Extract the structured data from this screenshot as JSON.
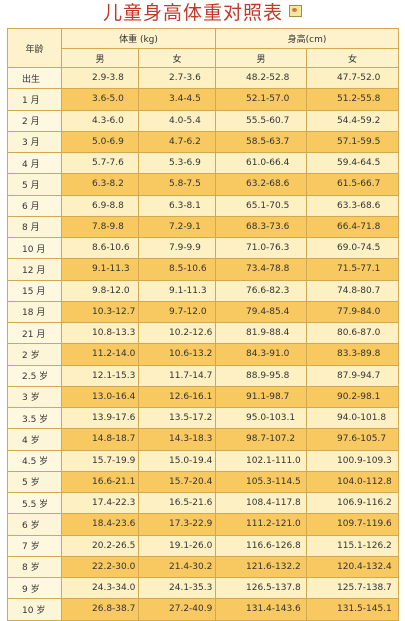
{
  "title": "儿童身高体重对照表",
  "header": {
    "age": "年龄",
    "weight": "体重 (kg)",
    "height": "身高(cm)",
    "male": "男",
    "female": "女"
  },
  "rows": [
    {
      "age": "出生",
      "wm": "2.9-3.8",
      "wf": "2.7-3.6",
      "hm": "48.2-52.8",
      "hf": "47.7-52.0"
    },
    {
      "age": "1 月",
      "wm": "3.6-5.0",
      "wf": "3.4-4.5",
      "hm": "52.1-57.0",
      "hf": "51.2-55.8"
    },
    {
      "age": "2 月",
      "wm": "4.3-6.0",
      "wf": "4.0-5.4",
      "hm": "55.5-60.7",
      "hf": "54.4-59.2"
    },
    {
      "age": "3 月",
      "wm": "5.0-6.9",
      "wf": "4.7-6.2",
      "hm": "58.5-63.7",
      "hf": "57.1-59.5"
    },
    {
      "age": "4 月",
      "wm": "5.7-7.6",
      "wf": "5.3-6.9",
      "hm": "61.0-66.4",
      "hf": "59.4-64.5"
    },
    {
      "age": "5 月",
      "wm": "6.3-8.2",
      "wf": "5.8-7.5",
      "hm": "63.2-68.6",
      "hf": "61.5-66.7"
    },
    {
      "age": "6 月",
      "wm": "6.9-8.8",
      "wf": "6.3-8.1",
      "hm": "65.1-70.5",
      "hf": "63.3-68.6"
    },
    {
      "age": "8 月",
      "wm": "7.8-9.8",
      "wf": "7.2-9.1",
      "hm": "68.3-73.6",
      "hf": "66.4-71.8"
    },
    {
      "age": "10 月",
      "wm": "8.6-10.6",
      "wf": "7.9-9.9",
      "hm": "71.0-76.3",
      "hf": "69.0-74.5"
    },
    {
      "age": "12 月",
      "wm": "9.1-11.3",
      "wf": "8.5-10.6",
      "hm": "73.4-78.8",
      "hf": "71.5-77.1"
    },
    {
      "age": "15 月",
      "wm": "9.8-12.0",
      "wf": "9.1-11.3",
      "hm": "76.6-82.3",
      "hf": "74.8-80.7"
    },
    {
      "age": "18 月",
      "wm": "10.3-12.7",
      "wf": "9.7-12.0",
      "hm": "79.4-85.4",
      "hf": "77.9-84.0"
    },
    {
      "age": "21 月",
      "wm": "10.8-13.3",
      "wf": "10.2-12.6",
      "hm": "81.9-88.4",
      "hf": "80.6-87.0"
    },
    {
      "age": "2 岁",
      "wm": "11.2-14.0",
      "wf": "10.6-13.2",
      "hm": "84.3-91.0",
      "hf": "83.3-89.8"
    },
    {
      "age": "2.5 岁",
      "wm": "12.1-15.3",
      "wf": "11.7-14.7",
      "hm": "88.9-95.8",
      "hf": "87.9-94.7"
    },
    {
      "age": "3 岁",
      "wm": "13.0-16.4",
      "wf": "12.6-16.1",
      "hm": "91.1-98.7",
      "hf": "90.2-98.1"
    },
    {
      "age": "3.5 岁",
      "wm": "13.9-17.6",
      "wf": "13.5-17.2",
      "hm": "95.0-103.1",
      "hf": "94.0-101.8"
    },
    {
      "age": "4 岁",
      "wm": "14.8-18.7",
      "wf": "14.3-18.3",
      "hm": "98.7-107.2",
      "hf": "97.6-105.7"
    },
    {
      "age": "4.5 岁",
      "wm": "15.7-19.9",
      "wf": "15.0-19.4",
      "hm": "102.1-111.0",
      "hf": "100.9-109.3"
    },
    {
      "age": "5 岁",
      "wm": "16.6-21.1",
      "wf": "15.7-20.4",
      "hm": "105.3-114.5",
      "hf": "104.0-112.8"
    },
    {
      "age": "5.5 岁",
      "wm": "17.4-22.3",
      "wf": "16.5-21.6",
      "hm": "108.4-117.8",
      "hf": "106.9-116.2"
    },
    {
      "age": "6 岁",
      "wm": "18.4-23.6",
      "wf": "17.3-22.9",
      "hm": "111.2-121.0",
      "hf": "109.7-119.6"
    },
    {
      "age": "7 岁",
      "wm": "20.2-26.5",
      "wf": "19.1-26.0",
      "hm": "116.6-126.8",
      "hf": "115.1-126.2"
    },
    {
      "age": "8 岁",
      "wm": "22.2-30.0",
      "wf": "21.4-30.2",
      "hm": "121.6-132.2",
      "hf": "120.4-132.4"
    },
    {
      "age": "9 岁",
      "wm": "24.3-34.0",
      "wf": "24.1-35.3",
      "hm": "126.5-137.8",
      "hf": "125.7-138.7"
    },
    {
      "age": "10 岁",
      "wm": "26.8-38.7",
      "wf": "27.2-40.9",
      "hm": "131.4-143.6",
      "hf": "131.5-145.1"
    }
  ]
}
